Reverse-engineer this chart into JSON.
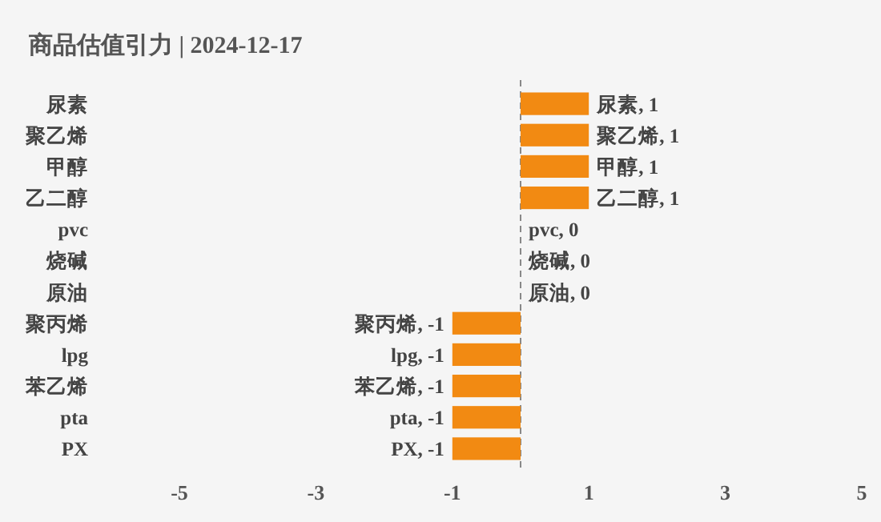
{
  "chart_data": {
    "type": "bar",
    "orientation": "horizontal",
    "title": "商品估值引力 | 2024-12-17",
    "categories": [
      "尿素",
      "聚乙烯",
      "甲醇",
      "乙二醇",
      "pvc",
      "烧碱",
      "原油",
      "聚丙烯",
      "lpg",
      "苯乙烯",
      "pta",
      "PX"
    ],
    "values": [
      1,
      1,
      1,
      1,
      0,
      0,
      0,
      -1,
      -1,
      -1,
      -1,
      -1
    ],
    "value_labels": [
      "尿素, 1",
      "聚乙烯, 1",
      "甲醇, 1",
      "乙二醇, 1",
      "pvc, 0",
      "烧碱, 0",
      "原油, 0",
      "聚丙烯, -1",
      "lpg, -1",
      "苯乙烯, -1",
      "pta, -1",
      "PX, -1"
    ],
    "color": "#f28a12",
    "xlim": [
      -5,
      5
    ],
    "xticks": [
      -5,
      -3,
      -1,
      1,
      3,
      5
    ],
    "ref_lines": [
      {
        "axis": "x",
        "value": 0,
        "color": "#888888",
        "line_style": "dashed"
      }
    ],
    "grid": false
  }
}
